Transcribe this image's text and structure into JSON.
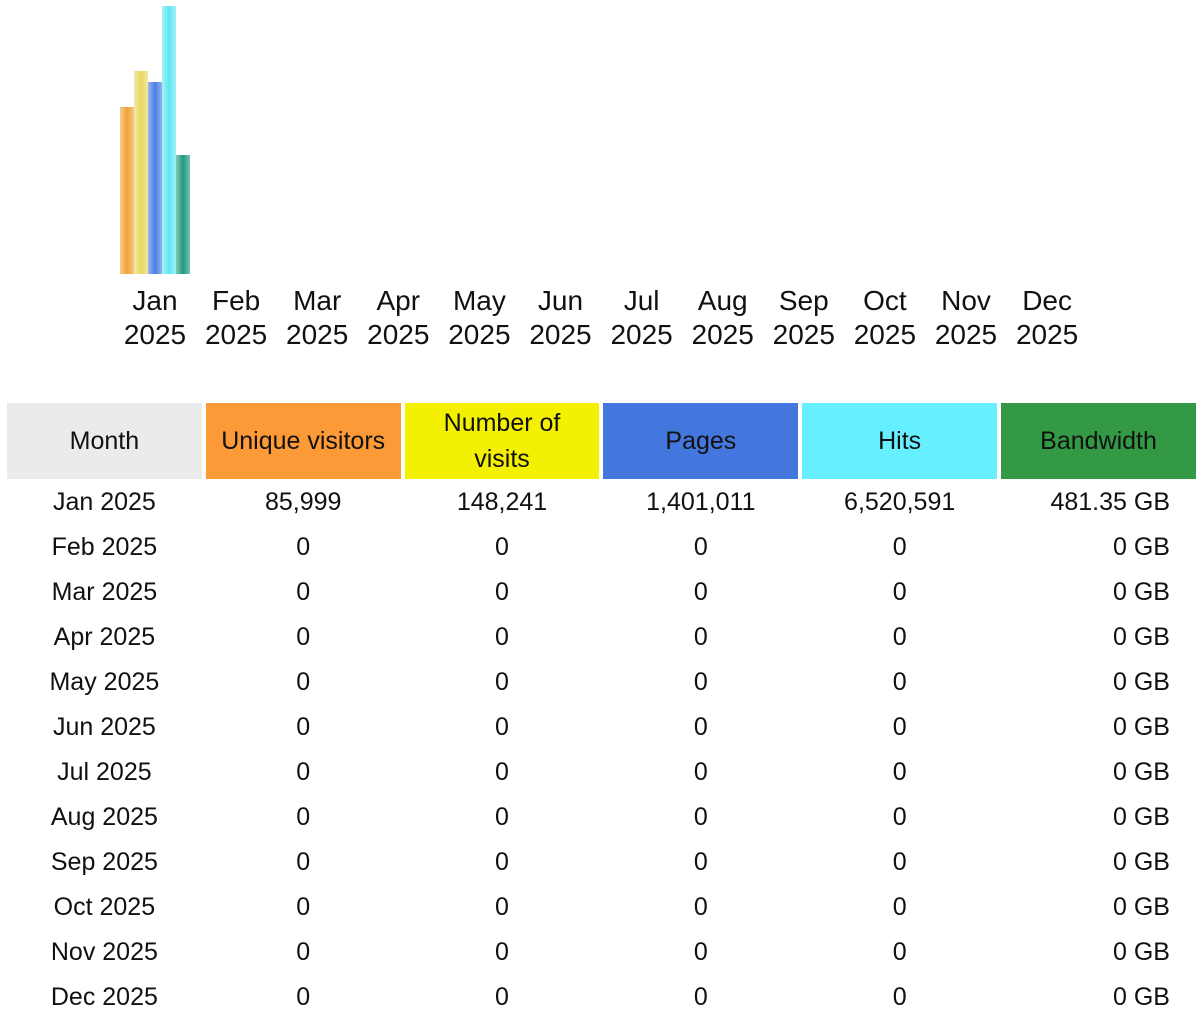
{
  "chart_data": {
    "type": "bar",
    "categories": [
      "Jan 2025",
      "Feb 2025",
      "Mar 2025",
      "Apr 2025",
      "May 2025",
      "Jun 2025",
      "Jul 2025",
      "Aug 2025",
      "Sep 2025",
      "Oct 2025",
      "Nov 2025",
      "Dec 2025"
    ],
    "ylim": [
      0,
      270
    ],
    "series": [
      {
        "color": "#f0a038",
        "values": [
          167,
          0,
          0,
          0,
          0,
          0,
          0,
          0,
          0,
          0,
          0,
          0
        ]
      },
      {
        "color": "#e8d860",
        "values": [
          203,
          0,
          0,
          0,
          0,
          0,
          0,
          0,
          0,
          0,
          0,
          0
        ]
      },
      {
        "color": "#4a7ee0",
        "values": [
          192,
          0,
          0,
          0,
          0,
          0,
          0,
          0,
          0,
          0,
          0,
          0
        ]
      },
      {
        "color": "#5fe6f0",
        "values": [
          268,
          0,
          0,
          0,
          0,
          0,
          0,
          0,
          0,
          0,
          0,
          0
        ]
      },
      {
        "color": "#1f9a80",
        "values": [
          119,
          0,
          0,
          0,
          0,
          0,
          0,
          0,
          0,
          0,
          0,
          0
        ]
      }
    ]
  },
  "table": {
    "columns": [
      {
        "label": "Month",
        "color": "#ebebeb"
      },
      {
        "label": "Unique visitors",
        "color": "#fd9a38"
      },
      {
        "label": "Number of visits",
        "color": "#f3f002"
      },
      {
        "label": "Pages",
        "color": "#4477dd"
      },
      {
        "label": "Hits",
        "color": "#66f0ff"
      },
      {
        "label": "Bandwidth",
        "color": "#339944"
      }
    ],
    "rows": [
      [
        "Jan 2025",
        "85,999",
        "148,241",
        "1,401,011",
        "6,520,591",
        "481.35 GB"
      ],
      [
        "Feb 2025",
        "0",
        "0",
        "0",
        "0",
        "0 GB"
      ],
      [
        "Mar 2025",
        "0",
        "0",
        "0",
        "0",
        "0 GB"
      ],
      [
        "Apr 2025",
        "0",
        "0",
        "0",
        "0",
        "0 GB"
      ],
      [
        "May 2025",
        "0",
        "0",
        "0",
        "0",
        "0 GB"
      ],
      [
        "Jun 2025",
        "0",
        "0",
        "0",
        "0",
        "0 GB"
      ],
      [
        "Jul 2025",
        "0",
        "0",
        "0",
        "0",
        "0 GB"
      ],
      [
        "Aug 2025",
        "0",
        "0",
        "0",
        "0",
        "0 GB"
      ],
      [
        "Sep 2025",
        "0",
        "0",
        "0",
        "0",
        "0 GB"
      ],
      [
        "Oct 2025",
        "0",
        "0",
        "0",
        "0",
        "0 GB"
      ],
      [
        "Nov 2025",
        "0",
        "0",
        "0",
        "0",
        "0 GB"
      ],
      [
        "Dec 2025",
        "0",
        "0",
        "0",
        "0",
        "0 GB"
      ]
    ]
  }
}
